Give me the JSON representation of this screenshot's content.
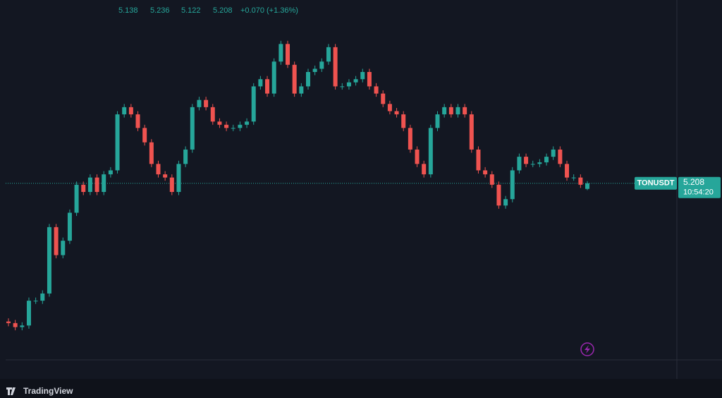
{
  "chart_data": {
    "type": "candlestick",
    "symbol": "TONUSDT",
    "time_label": "10:54:20",
    "change_label": "+0.070 (+1.36%)",
    "brand": "TradingView",
    "up_color": "#26a69a",
    "down_color": "#ef5350",
    "ylim": [
      3.0,
      7.5
    ],
    "open": [
      3.48,
      3.46,
      3.41,
      3.43,
      3.74,
      3.74,
      3.83,
      4.66,
      4.31,
      4.49,
      4.84,
      5.19,
      5.1,
      5.28,
      5.1,
      5.32,
      5.37,
      6.07,
      6.16,
      6.07,
      5.9,
      5.72,
      5.45,
      5.32,
      5.28,
      5.1,
      5.45,
      5.63,
      6.16,
      6.25,
      6.16,
      5.98,
      5.94,
      5.9,
      5.9,
      5.94,
      5.98,
      6.42,
      6.51,
      6.33,
      6.73,
      6.95,
      6.69,
      6.33,
      6.42,
      6.6,
      6.64,
      6.73,
      6.91,
      6.42,
      6.42,
      6.47,
      6.51,
      6.6,
      6.42,
      6.33,
      6.2,
      6.11,
      6.07,
      5.9,
      5.63,
      5.45,
      5.32,
      5.9,
      6.07,
      6.16,
      6.07,
      6.16,
      6.07,
      5.63,
      5.37,
      5.32,
      5.19,
      4.93,
      5.01,
      5.37,
      5.54,
      5.45,
      5.45,
      5.47,
      5.54,
      5.63,
      5.45,
      5.28,
      5.28,
      5.138
    ],
    "high": [
      3.52,
      3.5,
      3.47,
      3.78,
      3.78,
      3.87,
      4.7,
      4.7,
      4.53,
      4.88,
      5.23,
      5.23,
      5.32,
      5.32,
      5.36,
      5.41,
      6.11,
      6.2,
      6.2,
      6.11,
      5.94,
      5.76,
      5.49,
      5.36,
      5.32,
      5.49,
      5.67,
      6.2,
      6.29,
      6.29,
      6.2,
      6.02,
      5.98,
      5.94,
      5.98,
      6.02,
      6.46,
      6.55,
      6.55,
      6.77,
      6.99,
      6.99,
      6.73,
      6.46,
      6.64,
      6.68,
      6.77,
      6.95,
      6.95,
      6.46,
      6.51,
      6.55,
      6.64,
      6.64,
      6.46,
      6.37,
      6.24,
      6.15,
      6.11,
      5.94,
      5.67,
      5.49,
      5.94,
      6.11,
      6.2,
      6.2,
      6.2,
      6.2,
      6.11,
      5.67,
      5.41,
      5.36,
      5.23,
      5.05,
      5.41,
      5.58,
      5.58,
      5.49,
      5.51,
      5.58,
      5.67,
      5.67,
      5.49,
      5.32,
      5.32,
      5.236
    ],
    "low": [
      3.42,
      3.37,
      3.37,
      3.39,
      3.7,
      3.7,
      3.79,
      4.27,
      4.27,
      4.45,
      4.8,
      5.06,
      5.06,
      5.06,
      5.06,
      5.28,
      5.33,
      6.03,
      6.03,
      5.86,
      5.68,
      5.41,
      5.28,
      5.24,
      5.06,
      5.06,
      5.41,
      5.59,
      6.12,
      6.12,
      5.94,
      5.9,
      5.86,
      5.86,
      5.86,
      5.9,
      5.94,
      6.38,
      6.29,
      6.29,
      6.69,
      6.65,
      6.29,
      6.29,
      6.38,
      6.56,
      6.6,
      6.69,
      6.38,
      6.38,
      6.38,
      6.43,
      6.47,
      6.38,
      6.29,
      6.16,
      6.07,
      6.03,
      5.86,
      5.59,
      5.41,
      5.28,
      5.28,
      5.86,
      6.03,
      6.03,
      6.03,
      6.03,
      5.59,
      5.33,
      5.28,
      5.15,
      4.89,
      4.89,
      4.97,
      5.33,
      5.41,
      5.41,
      5.41,
      5.43,
      5.5,
      5.41,
      5.24,
      5.24,
      5.15,
      5.122
    ],
    "close": [
      3.46,
      3.41,
      3.43,
      3.74,
      3.74,
      3.83,
      4.66,
      4.31,
      4.49,
      4.84,
      5.19,
      5.1,
      5.28,
      5.1,
      5.32,
      5.37,
      6.07,
      6.16,
      6.07,
      5.9,
      5.72,
      5.45,
      5.32,
      5.28,
      5.1,
      5.45,
      5.63,
      6.16,
      6.25,
      6.16,
      5.98,
      5.94,
      5.9,
      5.9,
      5.94,
      5.98,
      6.42,
      6.51,
      6.33,
      6.73,
      6.95,
      6.69,
      6.33,
      6.42,
      6.6,
      6.64,
      6.73,
      6.91,
      6.42,
      6.42,
      6.47,
      6.51,
      6.6,
      6.42,
      6.33,
      6.2,
      6.11,
      6.07,
      5.9,
      5.63,
      5.45,
      5.32,
      5.9,
      6.07,
      6.16,
      6.07,
      6.16,
      6.07,
      5.63,
      5.37,
      5.32,
      5.19,
      4.93,
      5.01,
      5.37,
      5.54,
      5.45,
      5.45,
      5.47,
      5.54,
      5.63,
      5.45,
      5.28,
      5.28,
      5.19,
      5.208
    ]
  }
}
